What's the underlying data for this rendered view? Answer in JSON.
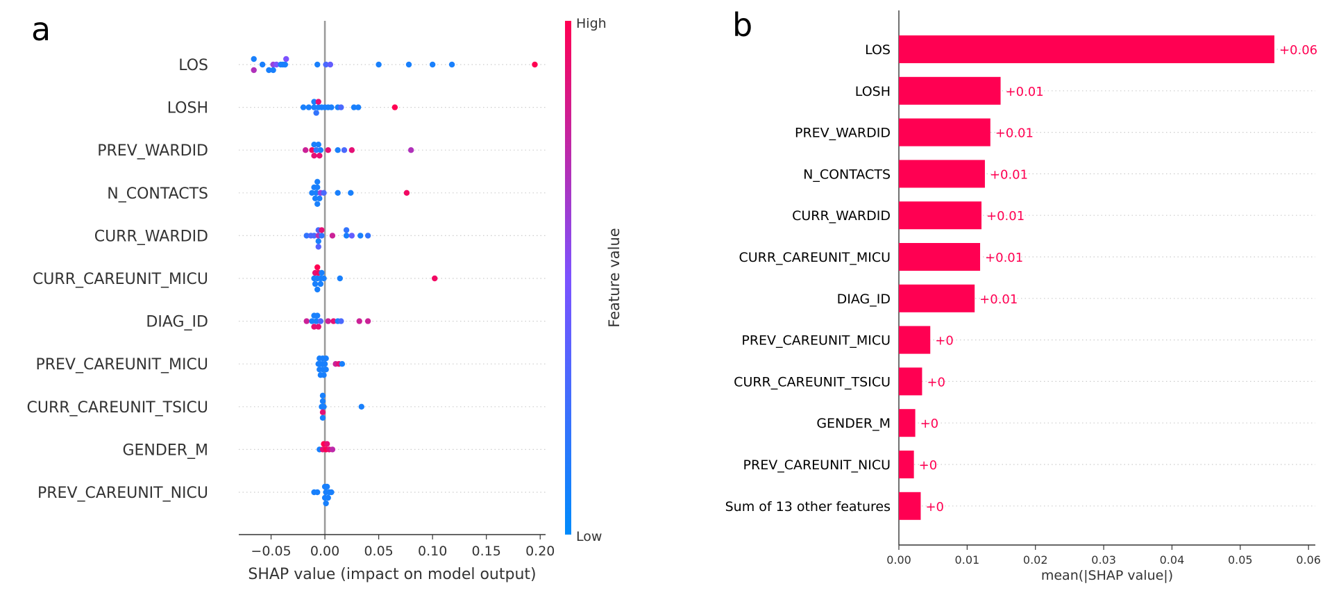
{
  "panels": {
    "a_letter": "a",
    "b_letter": "b"
  },
  "chart_data": [
    {
      "type": "scatter",
      "subtype": "beeswarm",
      "xlabel": "SHAP value (impact on model output)",
      "xlim": [
        -0.08,
        0.205
      ],
      "xticks": [
        -0.05,
        0.0,
        0.05,
        0.1,
        0.15,
        0.2
      ],
      "xtick_labels": [
        "−0.05",
        "0.00",
        "0.05",
        "0.10",
        "0.15",
        "0.20"
      ],
      "zero_line": true,
      "gridlines": "dotted-horizontal",
      "colorbar": {
        "label": "Feature value",
        "high_label": "High",
        "low_label": "Low",
        "low_color": "#008bfb",
        "high_color": "#ff0052"
      },
      "features": [
        "LOS",
        "LOSH",
        "PREV_WARDID",
        "N_CONTACTS",
        "CURR_WARDID",
        "CURR_CAREUNIT_MICU",
        "DIAG_ID",
        "PREV_CAREUNIT_MICU",
        "CURR_CAREUNIT_TSICU",
        "GENDER_M",
        "PREV_CAREUNIT_NICU"
      ],
      "series": [
        {
          "feature": "LOS",
          "x": [
            -0.066,
            -0.058,
            -0.048,
            -0.045,
            -0.041,
            -0.039,
            -0.037,
            -0.037,
            -0.007,
            0.001,
            0.005,
            0.05,
            0.078,
            0.1,
            0.118,
            0.195,
            -0.066,
            -0.052,
            -0.048,
            -0.036
          ],
          "dy": [
            -1,
            0,
            0,
            0,
            0,
            0,
            0,
            0,
            0,
            0,
            0,
            0,
            0,
            0,
            0,
            0,
            1,
            1,
            1,
            -1
          ],
          "v": [
            0.1,
            0.1,
            0.6,
            0.5,
            0.1,
            0.1,
            0.1,
            0.1,
            0.1,
            0.3,
            0.4,
            0.1,
            0.1,
            0.1,
            0.1,
            1.0,
            0.7,
            0.1,
            0.1,
            0.5
          ]
        },
        {
          "feature": "LOSH",
          "x": [
            -0.02,
            -0.015,
            -0.01,
            -0.006,
            -0.003,
            0.0,
            0.003,
            0.006,
            0.012,
            0.015,
            0.027,
            0.031,
            0.065,
            -0.01,
            -0.006,
            -0.008
          ],
          "dy": [
            0,
            0,
            0,
            0,
            0,
            0,
            0,
            0,
            0,
            0,
            0,
            0,
            0,
            -1,
            -1,
            1
          ],
          "v": [
            0.1,
            0.1,
            0.1,
            0.1,
            0.1,
            0.1,
            0.1,
            0.1,
            0.1,
            0.3,
            0.1,
            0.1,
            1.0,
            0.1,
            0.9,
            0.2
          ]
        },
        {
          "feature": "PREV_WARDID",
          "x": [
            -0.018,
            -0.012,
            -0.008,
            -0.004,
            0.003,
            0.012,
            0.018,
            0.025,
            0.08,
            -0.01,
            -0.006,
            -0.01,
            -0.005
          ],
          "dy": [
            0,
            0,
            0,
            0,
            0,
            0,
            0,
            0,
            0,
            -1,
            -1,
            1,
            1
          ],
          "v": [
            0.8,
            0.95,
            0.2,
            0.1,
            0.9,
            0.1,
            0.3,
            0.9,
            0.7,
            0.1,
            0.1,
            0.9,
            0.9
          ]
        },
        {
          "feature": "N_CONTACTS",
          "x": [
            -0.012,
            -0.008,
            -0.004,
            -0.001,
            0.012,
            0.024,
            0.076,
            -0.01,
            -0.007,
            -0.009,
            -0.005,
            -0.007,
            -0.007
          ],
          "dy": [
            0,
            0,
            0,
            0,
            0,
            0,
            0,
            -1,
            -1,
            1,
            1,
            -2,
            2
          ],
          "v": [
            0.1,
            0.1,
            0.6,
            0.3,
            0.1,
            0.1,
            0.95,
            0.1,
            0.1,
            0.1,
            0.1,
            0.1,
            0.1
          ]
        },
        {
          "feature": "CURR_WARDID",
          "x": [
            -0.017,
            -0.013,
            -0.01,
            -0.006,
            -0.003,
            0.007,
            0.02,
            0.025,
            0.033,
            0.04,
            -0.006,
            -0.003,
            -0.006,
            0.02,
            -0.006
          ],
          "dy": [
            0,
            0,
            0,
            0,
            0,
            0,
            0,
            0,
            0,
            0,
            -1,
            -1,
            1,
            -1,
            2
          ],
          "v": [
            0.2,
            0.3,
            0.3,
            0.7,
            0.2,
            0.8,
            0.1,
            0.4,
            0.1,
            0.2,
            0.3,
            0.9,
            0.1,
            0.2,
            0.35
          ]
        },
        {
          "feature": "CURR_CAREUNIT_MICU",
          "x": [
            -0.01,
            -0.007,
            -0.004,
            -0.001,
            0.014,
            0.102,
            -0.009,
            -0.006,
            -0.003,
            -0.009,
            -0.004,
            -0.007,
            -0.007
          ],
          "dy": [
            0,
            0,
            0,
            0,
            0,
            0,
            -1,
            -1,
            -1,
            1,
            1,
            -2,
            2
          ],
          "v": [
            0.1,
            0.1,
            0.1,
            0.1,
            0.1,
            0.95,
            0.9,
            0.95,
            0.1,
            0.1,
            0.1,
            1.0,
            0.1
          ]
        },
        {
          "feature": "DIAG_ID",
          "x": [
            -0.017,
            -0.012,
            -0.008,
            -0.004,
            0.003,
            0.008,
            0.012,
            0.015,
            0.032,
            0.04,
            -0.01,
            -0.007,
            -0.01,
            -0.006
          ],
          "dy": [
            0,
            0,
            0,
            0,
            0,
            0,
            0,
            0,
            0,
            0,
            -1,
            -1,
            1,
            1
          ],
          "v": [
            0.8,
            0.1,
            0.1,
            0.3,
            0.8,
            0.9,
            0.1,
            0.3,
            0.8,
            0.8,
            0.1,
            0.1,
            0.9,
            0.9
          ]
        },
        {
          "feature": "PREV_CAREUNIT_MICU",
          "x": [
            -0.006,
            -0.004,
            -0.002,
            0.0,
            0.01,
            0.013,
            0.016,
            -0.005,
            -0.002,
            0.001,
            -0.005,
            -0.002,
            0.001,
            -0.004,
            -0.001
          ],
          "dy": [
            0,
            0,
            0,
            0,
            0,
            0,
            0,
            -1,
            -1,
            -1,
            1,
            1,
            1,
            2,
            2
          ],
          "v": [
            0.1,
            0.1,
            0.1,
            0.1,
            0.8,
            0.9,
            0.1,
            0.1,
            0.1,
            0.1,
            0.1,
            0.1,
            0.1,
            0.1,
            0.1
          ]
        },
        {
          "feature": "CURR_CAREUNIT_TSICU",
          "x": [
            -0.003,
            -0.002,
            -0.001,
            0.034,
            -0.002,
            -0.002,
            -0.002,
            -0.002
          ],
          "dy": [
            0,
            0,
            0,
            0,
            -1,
            1,
            2,
            -2
          ],
          "v": [
            0.1,
            0.1,
            0.1,
            0.1,
            0.1,
            0.9,
            0.1,
            0.1
          ]
        },
        {
          "feature": "GENDER_M",
          "x": [
            -0.005,
            -0.002,
            0.001,
            0.004,
            0.007,
            -0.001,
            0.002
          ],
          "dy": [
            0,
            0,
            0,
            0,
            0,
            -1,
            -1
          ],
          "v": [
            0.1,
            0.9,
            1.0,
            0.9,
            0.75,
            1.0,
            0.9
          ]
        },
        {
          "feature": "PREV_CAREUNIT_NICU",
          "x": [
            -0.01,
            -0.007,
            0.001,
            0.004,
            0.006,
            0.0,
            0.002,
            0.0,
            0.003,
            0.001
          ],
          "dy": [
            0,
            0,
            0,
            0,
            0,
            -1,
            -1,
            1,
            1,
            2
          ],
          "v": [
            0.1,
            0.1,
            0.1,
            0.1,
            0.1,
            0.1,
            0.1,
            0.1,
            0.1,
            0.1
          ]
        }
      ]
    },
    {
      "type": "bar",
      "orientation": "horizontal",
      "xlabel": "mean(|SHAP value|)",
      "xlim": [
        0,
        0.061
      ],
      "xticks": [
        0,
        0.01,
        0.02,
        0.03,
        0.04,
        0.05,
        0.06
      ],
      "xtick_labels": [
        "0.00",
        "0.01",
        "0.02",
        "0.03",
        "0.04",
        "0.05",
        "0.06"
      ],
      "bar_color": "#ff0052",
      "gridlines": "dotted-horizontal",
      "categories": [
        "LOS",
        "LOSH",
        "PREV_WARDID",
        "N_CONTACTS",
        "CURR_WARDID",
        "CURR_CAREUNIT_MICU",
        "DIAG_ID",
        "PREV_CAREUNIT_MICU",
        "CURR_CAREUNIT_TSICU",
        "GENDER_M",
        "PREV_CAREUNIT_NICU",
        "Sum of 13 other features"
      ],
      "values": [
        0.055,
        0.0149,
        0.0134,
        0.0126,
        0.0121,
        0.0119,
        0.0111,
        0.0046,
        0.0034,
        0.0024,
        0.0022,
        0.0032
      ],
      "value_labels": [
        "+0.06",
        "+0.01",
        "+0.01",
        "+0.01",
        "+0.01",
        "+0.01",
        "+0.01",
        "+0",
        "+0",
        "+0",
        "+0",
        "+0"
      ]
    }
  ]
}
